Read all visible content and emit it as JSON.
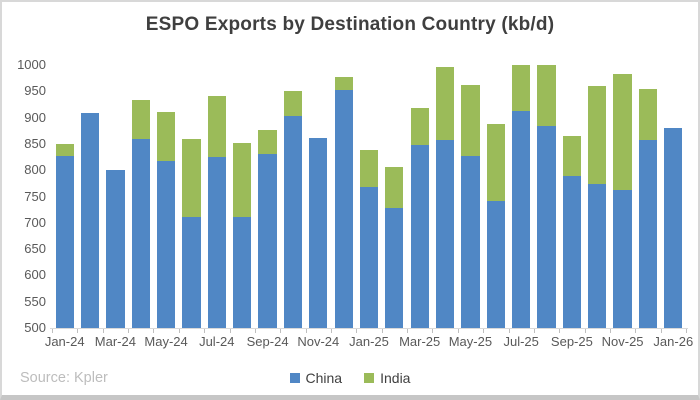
{
  "chart_data": {
    "type": "bar",
    "stacked": true,
    "title": "ESPO Exports by Destination Country (kb/d)",
    "categories": [
      "Jan-24",
      "Feb-24",
      "Mar-24",
      "Apr-24",
      "May-24",
      "Jun-24",
      "Jul-24",
      "Aug-24",
      "Sep-24",
      "Oct-24",
      "Nov-24",
      "Dec-24",
      "Jan-25",
      "Feb-25",
      "Mar-25",
      "Apr-25",
      "May-25",
      "Jun-25",
      "Jul-25",
      "Aug-25",
      "Sep-25",
      "Oct-25",
      "Nov-25",
      "Dec-25",
      "Jan-26"
    ],
    "x_tick_labels": [
      "Jan-24",
      "Mar-24",
      "May-24",
      "Jul-24",
      "Sep-24",
      "Nov-24",
      "Jan-25",
      "Mar-25",
      "May-25",
      "Jul-25",
      "Sep-25",
      "Nov-25",
      "Jan-26"
    ],
    "series": [
      {
        "name": "China",
        "color": "#5087c5",
        "values": [
          827,
          908,
          800,
          860,
          817,
          712,
          826,
          712,
          830,
          903,
          861,
          953,
          768,
          729,
          848,
          858,
          827,
          741,
          913,
          885,
          790,
          773,
          762,
          858,
          880
        ]
      },
      {
        "name": "India",
        "color": "#9bbb59",
        "values": [
          23,
          0,
          0,
          73,
          93,
          147,
          116,
          139,
          46,
          47,
          0,
          25,
          71,
          77,
          70,
          139,
          136,
          147,
          87,
          115,
          75,
          187,
          221,
          96,
          0
        ]
      }
    ],
    "ylim": [
      500,
      1000
    ],
    "y_ticks": [
      500,
      550,
      600,
      650,
      700,
      750,
      800,
      850,
      900,
      950,
      1000
    ],
    "grid": false,
    "legend_position": "bottom",
    "xlabel": "",
    "ylabel": ""
  },
  "footer": {
    "source_label": "Source: Kpler"
  },
  "colors": {
    "china": "#5087c5",
    "india": "#9bbb59",
    "axis_line": "#d9d9d9",
    "tick": "#bfbfbf",
    "title_text": "#3f3f3f",
    "axis_text": "#595959",
    "source_text": "#bdbdbd",
    "frame_border": "#d8d8d8"
  }
}
